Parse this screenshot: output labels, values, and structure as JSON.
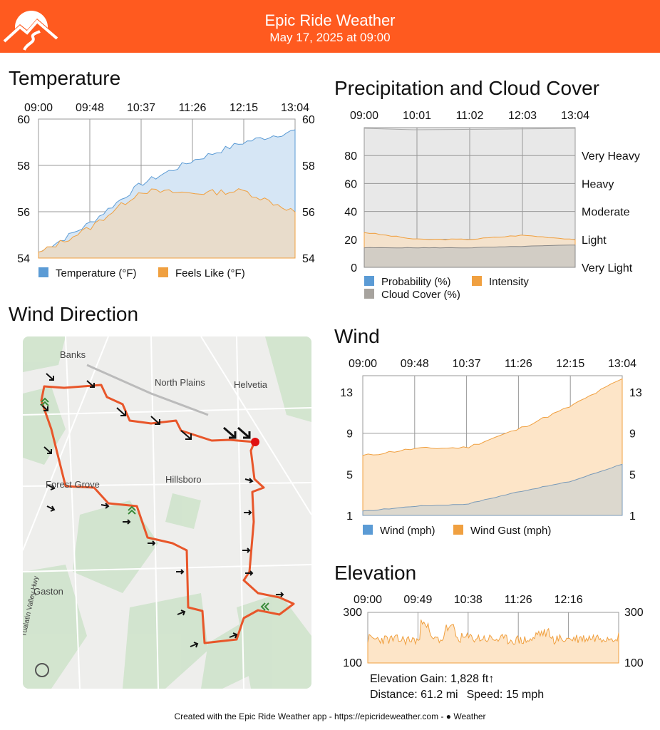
{
  "header": {
    "title": "Epic Ride Weather",
    "subtitle": "May 17, 2025 at 09:00",
    "bg_color": "#ff5a1f"
  },
  "temperature": {
    "title": "Temperature",
    "time_labels": [
      "09:00",
      "09:48",
      "10:37",
      "11:26",
      "12:15",
      "13:04"
    ],
    "y_ticks": [
      "60",
      "58",
      "56",
      "54"
    ],
    "legend": [
      "Temperature (°F)",
      "Feels Like (°F)"
    ]
  },
  "precip": {
    "title": "Precipitation and Cloud Cover",
    "time_labels": [
      "09:00",
      "10:01",
      "11:02",
      "12:03",
      "13:04"
    ],
    "y_ticks": [
      "80",
      "60",
      "40",
      "20",
      "0"
    ],
    "intensity_labels": [
      "Very Heavy",
      "Heavy",
      "Moderate",
      "Light",
      "Very Light"
    ],
    "legend": [
      "Probability (%)",
      "Intensity",
      "Cloud Cover (%)"
    ]
  },
  "wind_dir": {
    "title": "Wind Direction",
    "places": [
      "Banks",
      "North Plains",
      "Helvetia",
      "Forest Grove",
      "Hillsboro",
      "Gaston",
      "Tualatin Valley Hwy"
    ]
  },
  "wind": {
    "title": "Wind",
    "time_labels": [
      "09:00",
      "09:48",
      "10:37",
      "11:26",
      "12:15",
      "13:04"
    ],
    "y_ticks": [
      "13",
      "9",
      "5",
      "1"
    ],
    "legend": [
      "Wind (mph)",
      "Wind Gust (mph)"
    ]
  },
  "elevation": {
    "title": "Elevation",
    "time_labels": [
      "09:00",
      "09:49",
      "10:38",
      "11:26",
      "12:16"
    ],
    "y_ticks": [
      "300",
      "100"
    ],
    "gain": "Elevation Gain: 1,828 ft↑",
    "distance": "Distance: 61.2 mi",
    "speed": "Speed: 15 mph"
  },
  "footer": "Created with the Epic Ride Weather app - https://epicrideweather.com - ",
  "footer_brand": "Weather",
  "colors": {
    "temp_fill": "#d6e6f5",
    "temp_line": "#5b9bd5",
    "feels_fill": "#ecdcc5",
    "feels_line": "#f0a040",
    "cloud_fill": "#d2cdc5",
    "route": "#e8562a"
  },
  "chart_data": [
    {
      "type": "area",
      "title": "Temperature",
      "x": [
        "09:00",
        "09:48",
        "10:37",
        "11:26",
        "12:15",
        "13:04"
      ],
      "ylim": [
        54,
        60
      ],
      "series": [
        {
          "name": "Temperature (°F)",
          "values": [
            54.2,
            55.5,
            57.2,
            58.2,
            59.0,
            59.5
          ]
        },
        {
          "name": "Feels Like (°F)",
          "values": [
            54.2,
            55.3,
            56.9,
            56.8,
            56.9,
            56.0
          ]
        }
      ]
    },
    {
      "type": "area",
      "title": "Precipitation and Cloud Cover",
      "x": [
        "09:00",
        "10:01",
        "11:02",
        "12:03",
        "13:04"
      ],
      "ylim": [
        0,
        100
      ],
      "series": [
        {
          "name": "Probability (%)",
          "values": [
            0,
            0,
            0,
            0,
            0
          ]
        },
        {
          "name": "Intensity",
          "values": [
            25,
            20,
            20,
            23,
            20
          ]
        },
        {
          "name": "Cloud Cover (%)",
          "values": [
            14,
            14,
            14,
            15,
            16
          ]
        }
      ]
    },
    {
      "type": "area",
      "title": "Wind",
      "x": [
        "09:00",
        "09:48",
        "10:37",
        "11:26",
        "12:15",
        "13:04"
      ],
      "ylim": [
        1,
        14
      ],
      "series": [
        {
          "name": "Wind (mph)",
          "values": [
            1.4,
            1.9,
            2.1,
            3.3,
            4.3,
            6.0
          ]
        },
        {
          "name": "Wind Gust (mph)",
          "values": [
            6.8,
            7.5,
            7.6,
            9.4,
            11.6,
            14.3
          ]
        }
      ]
    },
    {
      "type": "area",
      "title": "Elevation",
      "x": [
        "09:00",
        "09:49",
        "10:38",
        "11:26",
        "12:16"
      ],
      "ylim": [
        100,
        300
      ],
      "series": [
        {
          "name": "Elevation",
          "values": [
            200,
            240,
            180,
            190,
            195
          ]
        }
      ]
    }
  ]
}
